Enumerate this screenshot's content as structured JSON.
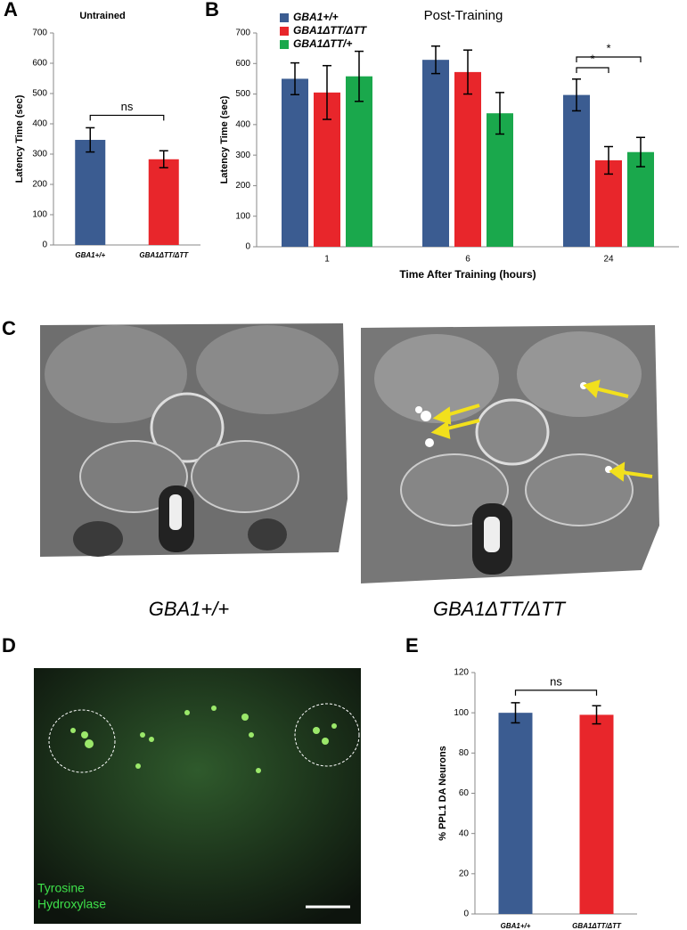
{
  "chart_data": [
    {
      "type": "bar",
      "panel": "A",
      "title": "Untrained",
      "y_label": "Latency Time (sec)",
      "categories": [
        "GBA1+/+",
        "GBA1ΔTT/ΔTT"
      ],
      "values": [
        347,
        283
      ],
      "errors": [
        40,
        28
      ],
      "colors": [
        "#3b5c91",
        "#e8262b"
      ],
      "ylim": [
        0,
        700
      ],
      "yticks": [
        0,
        100,
        200,
        300,
        400,
        500,
        600,
        700
      ],
      "annotations": [
        "ns"
      ]
    },
    {
      "type": "bar",
      "panel": "B",
      "title": "Post-Training",
      "y_label": "Latency Time (sec)",
      "x_label": "Time After Training (hours)",
      "categories": [
        "1",
        "6",
        "24"
      ],
      "series": [
        {
          "name": "GBA1+/+",
          "color": "#3b5c91",
          "values": [
            550,
            612,
            497
          ],
          "errors": [
            52,
            45,
            52
          ]
        },
        {
          "name": "GBA1ΔTT/ΔTT",
          "color": "#e8262b",
          "values": [
            505,
            572,
            283
          ],
          "errors": [
            88,
            72,
            45
          ]
        },
        {
          "name": "GBA1ΔTT/+",
          "color": "#1aa84c",
          "values": [
            558,
            437,
            310
          ],
          "errors": [
            82,
            68,
            48
          ]
        }
      ],
      "ylim": [
        0,
        700
      ],
      "yticks": [
        0,
        100,
        200,
        300,
        400,
        500,
        600,
        700
      ],
      "annotations": [
        "*",
        "*"
      ]
    },
    {
      "type": "bar",
      "panel": "E",
      "y_label": "% PPL1 DA Neurons",
      "categories": [
        "GBA1+/+",
        "GBA1ΔTT/ΔTT"
      ],
      "values": [
        100,
        99
      ],
      "errors": [
        5,
        4.5
      ],
      "colors": [
        "#3b5c91",
        "#e8262b"
      ],
      "ylim": [
        0,
        120
      ],
      "yticks": [
        0,
        20,
        40,
        60,
        80,
        100,
        120
      ],
      "annotations": [
        "ns"
      ]
    }
  ],
  "images": {
    "panel_c": "C",
    "panel_d": "D",
    "captions": [
      "GBA1+/+",
      "GBA1ΔTT/ΔTT"
    ],
    "stain": [
      "Tyrosine",
      "Hydroxylase"
    ]
  }
}
